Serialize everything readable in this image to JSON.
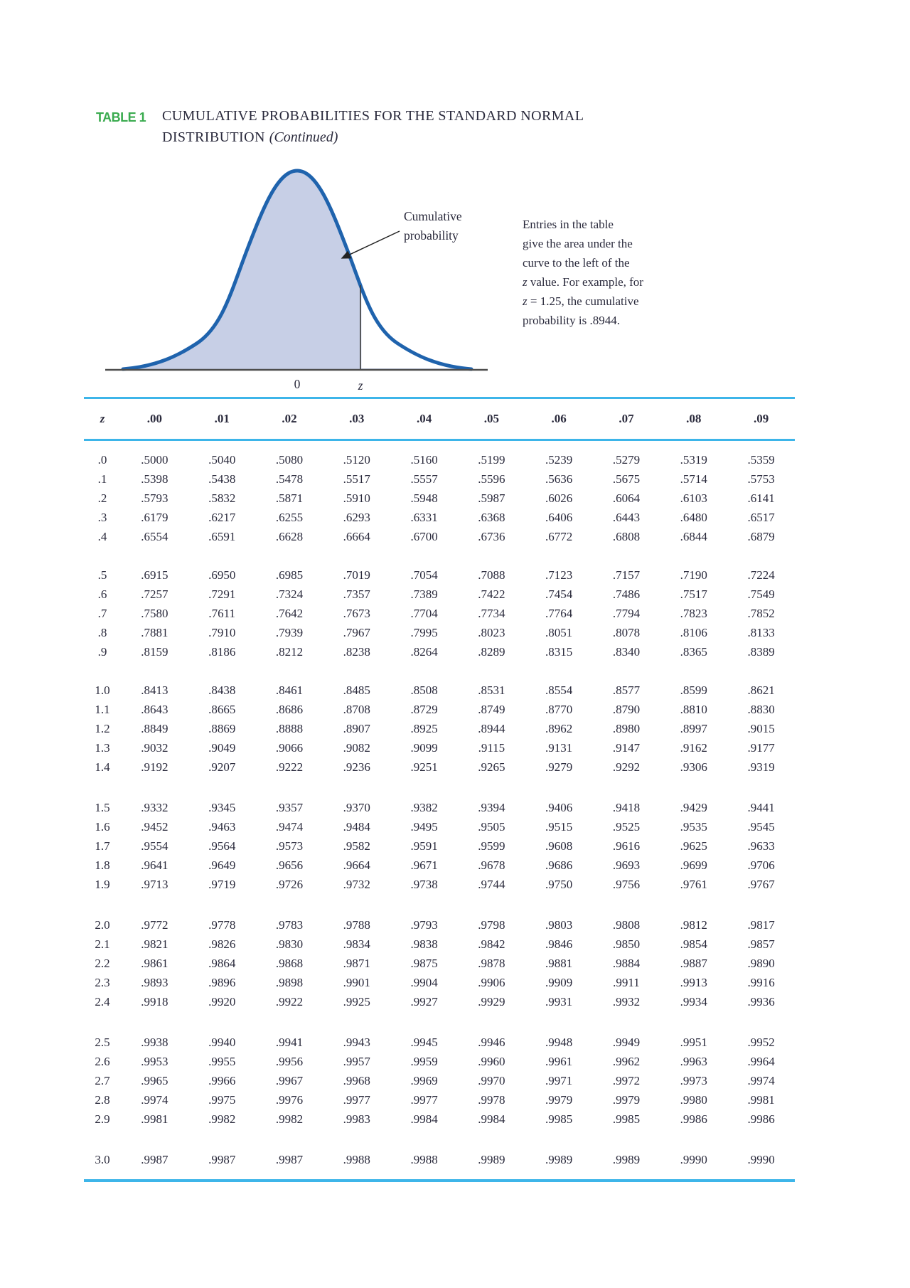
{
  "title": {
    "tag": "TABLE 1",
    "line1": "CUMULATIVE PROBABILITIES FOR THE STANDARD NORMAL",
    "line2": "DISTRIBUTION",
    "continued": "(Continued)"
  },
  "figure": {
    "annotation": {
      "line1": "Cumulative",
      "line2": "probability"
    },
    "axis": {
      "zero_label": "0",
      "z_label": "z"
    },
    "note": {
      "line1": "Entries in the table",
      "line2": "give the area under the",
      "line3": "curve to the left of the",
      "line4_z": "z",
      "line4_rest": " value. For example, for",
      "line5_z": "z",
      "line5_rest": " = 1.25, the cumulative",
      "line6": "probability is .8944."
    }
  },
  "colors": {
    "green_tag": "#3aab4f",
    "rule_cyan": "#3db5e9",
    "curve_stroke": "#1f63ad",
    "curve_fill": "#c7cfe6",
    "ink": "#2a2a3c"
  },
  "table": {
    "header": [
      "z",
      ".00",
      ".01",
      ".02",
      ".03",
      ".04",
      ".05",
      ".06",
      ".07",
      ".08",
      ".09"
    ],
    "blocks": [
      [
        {
          "z": ".0",
          "v": [
            ".5000",
            ".5040",
            ".5080",
            ".5120",
            ".5160",
            ".5199",
            ".5239",
            ".5279",
            ".5319",
            ".5359"
          ]
        },
        {
          "z": ".1",
          "v": [
            ".5398",
            ".5438",
            ".5478",
            ".5517",
            ".5557",
            ".5596",
            ".5636",
            ".5675",
            ".5714",
            ".5753"
          ]
        },
        {
          "z": ".2",
          "v": [
            ".5793",
            ".5832",
            ".5871",
            ".5910",
            ".5948",
            ".5987",
            ".6026",
            ".6064",
            ".6103",
            ".6141"
          ]
        },
        {
          "z": ".3",
          "v": [
            ".6179",
            ".6217",
            ".6255",
            ".6293",
            ".6331",
            ".6368",
            ".6406",
            ".6443",
            ".6480",
            ".6517"
          ]
        },
        {
          "z": ".4",
          "v": [
            ".6554",
            ".6591",
            ".6628",
            ".6664",
            ".6700",
            ".6736",
            ".6772",
            ".6808",
            ".6844",
            ".6879"
          ]
        }
      ],
      [
        {
          "z": ".5",
          "v": [
            ".6915",
            ".6950",
            ".6985",
            ".7019",
            ".7054",
            ".7088",
            ".7123",
            ".7157",
            ".7190",
            ".7224"
          ]
        },
        {
          "z": ".6",
          "v": [
            ".7257",
            ".7291",
            ".7324",
            ".7357",
            ".7389",
            ".7422",
            ".7454",
            ".7486",
            ".7517",
            ".7549"
          ]
        },
        {
          "z": ".7",
          "v": [
            ".7580",
            ".7611",
            ".7642",
            ".7673",
            ".7704",
            ".7734",
            ".7764",
            ".7794",
            ".7823",
            ".7852"
          ]
        },
        {
          "z": ".8",
          "v": [
            ".7881",
            ".7910",
            ".7939",
            ".7967",
            ".7995",
            ".8023",
            ".8051",
            ".8078",
            ".8106",
            ".8133"
          ]
        },
        {
          "z": ".9",
          "v": [
            ".8159",
            ".8186",
            ".8212",
            ".8238",
            ".8264",
            ".8289",
            ".8315",
            ".8340",
            ".8365",
            ".8389"
          ]
        }
      ],
      [
        {
          "z": "1.0",
          "v": [
            ".8413",
            ".8438",
            ".8461",
            ".8485",
            ".8508",
            ".8531",
            ".8554",
            ".8577",
            ".8599",
            ".8621"
          ]
        },
        {
          "z": "1.1",
          "v": [
            ".8643",
            ".8665",
            ".8686",
            ".8708",
            ".8729",
            ".8749",
            ".8770",
            ".8790",
            ".8810",
            ".8830"
          ]
        },
        {
          "z": "1.2",
          "v": [
            ".8849",
            ".8869",
            ".8888",
            ".8907",
            ".8925",
            ".8944",
            ".8962",
            ".8980",
            ".8997",
            ".9015"
          ]
        },
        {
          "z": "1.3",
          "v": [
            ".9032",
            ".9049",
            ".9066",
            ".9082",
            ".9099",
            ".9115",
            ".9131",
            ".9147",
            ".9162",
            ".9177"
          ]
        },
        {
          "z": "1.4",
          "v": [
            ".9192",
            ".9207",
            ".9222",
            ".9236",
            ".9251",
            ".9265",
            ".9279",
            ".9292",
            ".9306",
            ".9319"
          ]
        }
      ],
      [
        {
          "z": "1.5",
          "v": [
            ".9332",
            ".9345",
            ".9357",
            ".9370",
            ".9382",
            ".9394",
            ".9406",
            ".9418",
            ".9429",
            ".9441"
          ]
        },
        {
          "z": "1.6",
          "v": [
            ".9452",
            ".9463",
            ".9474",
            ".9484",
            ".9495",
            ".9505",
            ".9515",
            ".9525",
            ".9535",
            ".9545"
          ]
        },
        {
          "z": "1.7",
          "v": [
            ".9554",
            ".9564",
            ".9573",
            ".9582",
            ".9591",
            ".9599",
            ".9608",
            ".9616",
            ".9625",
            ".9633"
          ]
        },
        {
          "z": "1.8",
          "v": [
            ".9641",
            ".9649",
            ".9656",
            ".9664",
            ".9671",
            ".9678",
            ".9686",
            ".9693",
            ".9699",
            ".9706"
          ]
        },
        {
          "z": "1.9",
          "v": [
            ".9713",
            ".9719",
            ".9726",
            ".9732",
            ".9738",
            ".9744",
            ".9750",
            ".9756",
            ".9761",
            ".9767"
          ]
        }
      ],
      [
        {
          "z": "2.0",
          "v": [
            ".9772",
            ".9778",
            ".9783",
            ".9788",
            ".9793",
            ".9798",
            ".9803",
            ".9808",
            ".9812",
            ".9817"
          ]
        },
        {
          "z": "2.1",
          "v": [
            ".9821",
            ".9826",
            ".9830",
            ".9834",
            ".9838",
            ".9842",
            ".9846",
            ".9850",
            ".9854",
            ".9857"
          ]
        },
        {
          "z": "2.2",
          "v": [
            ".9861",
            ".9864",
            ".9868",
            ".9871",
            ".9875",
            ".9878",
            ".9881",
            ".9884",
            ".9887",
            ".9890"
          ]
        },
        {
          "z": "2.3",
          "v": [
            ".9893",
            ".9896",
            ".9898",
            ".9901",
            ".9904",
            ".9906",
            ".9909",
            ".9911",
            ".9913",
            ".9916"
          ]
        },
        {
          "z": "2.4",
          "v": [
            ".9918",
            ".9920",
            ".9922",
            ".9925",
            ".9927",
            ".9929",
            ".9931",
            ".9932",
            ".9934",
            ".9936"
          ]
        }
      ],
      [
        {
          "z": "2.5",
          "v": [
            ".9938",
            ".9940",
            ".9941",
            ".9943",
            ".9945",
            ".9946",
            ".9948",
            ".9949",
            ".9951",
            ".9952"
          ]
        },
        {
          "z": "2.6",
          "v": [
            ".9953",
            ".9955",
            ".9956",
            ".9957",
            ".9959",
            ".9960",
            ".9961",
            ".9962",
            ".9963",
            ".9964"
          ]
        },
        {
          "z": "2.7",
          "v": [
            ".9965",
            ".9966",
            ".9967",
            ".9968",
            ".9969",
            ".9970",
            ".9971",
            ".9972",
            ".9973",
            ".9974"
          ]
        },
        {
          "z": "2.8",
          "v": [
            ".9974",
            ".9975",
            ".9976",
            ".9977",
            ".9977",
            ".9978",
            ".9979",
            ".9979",
            ".9980",
            ".9981"
          ]
        },
        {
          "z": "2.9",
          "v": [
            ".9981",
            ".9982",
            ".9982",
            ".9983",
            ".9984",
            ".9984",
            ".9985",
            ".9985",
            ".9986",
            ".9986"
          ]
        }
      ],
      [
        {
          "z": "3.0",
          "v": [
            ".9987",
            ".9987",
            ".9987",
            ".9988",
            ".9988",
            ".9989",
            ".9989",
            ".9989",
            ".9990",
            ".9990"
          ]
        }
      ]
    ]
  }
}
